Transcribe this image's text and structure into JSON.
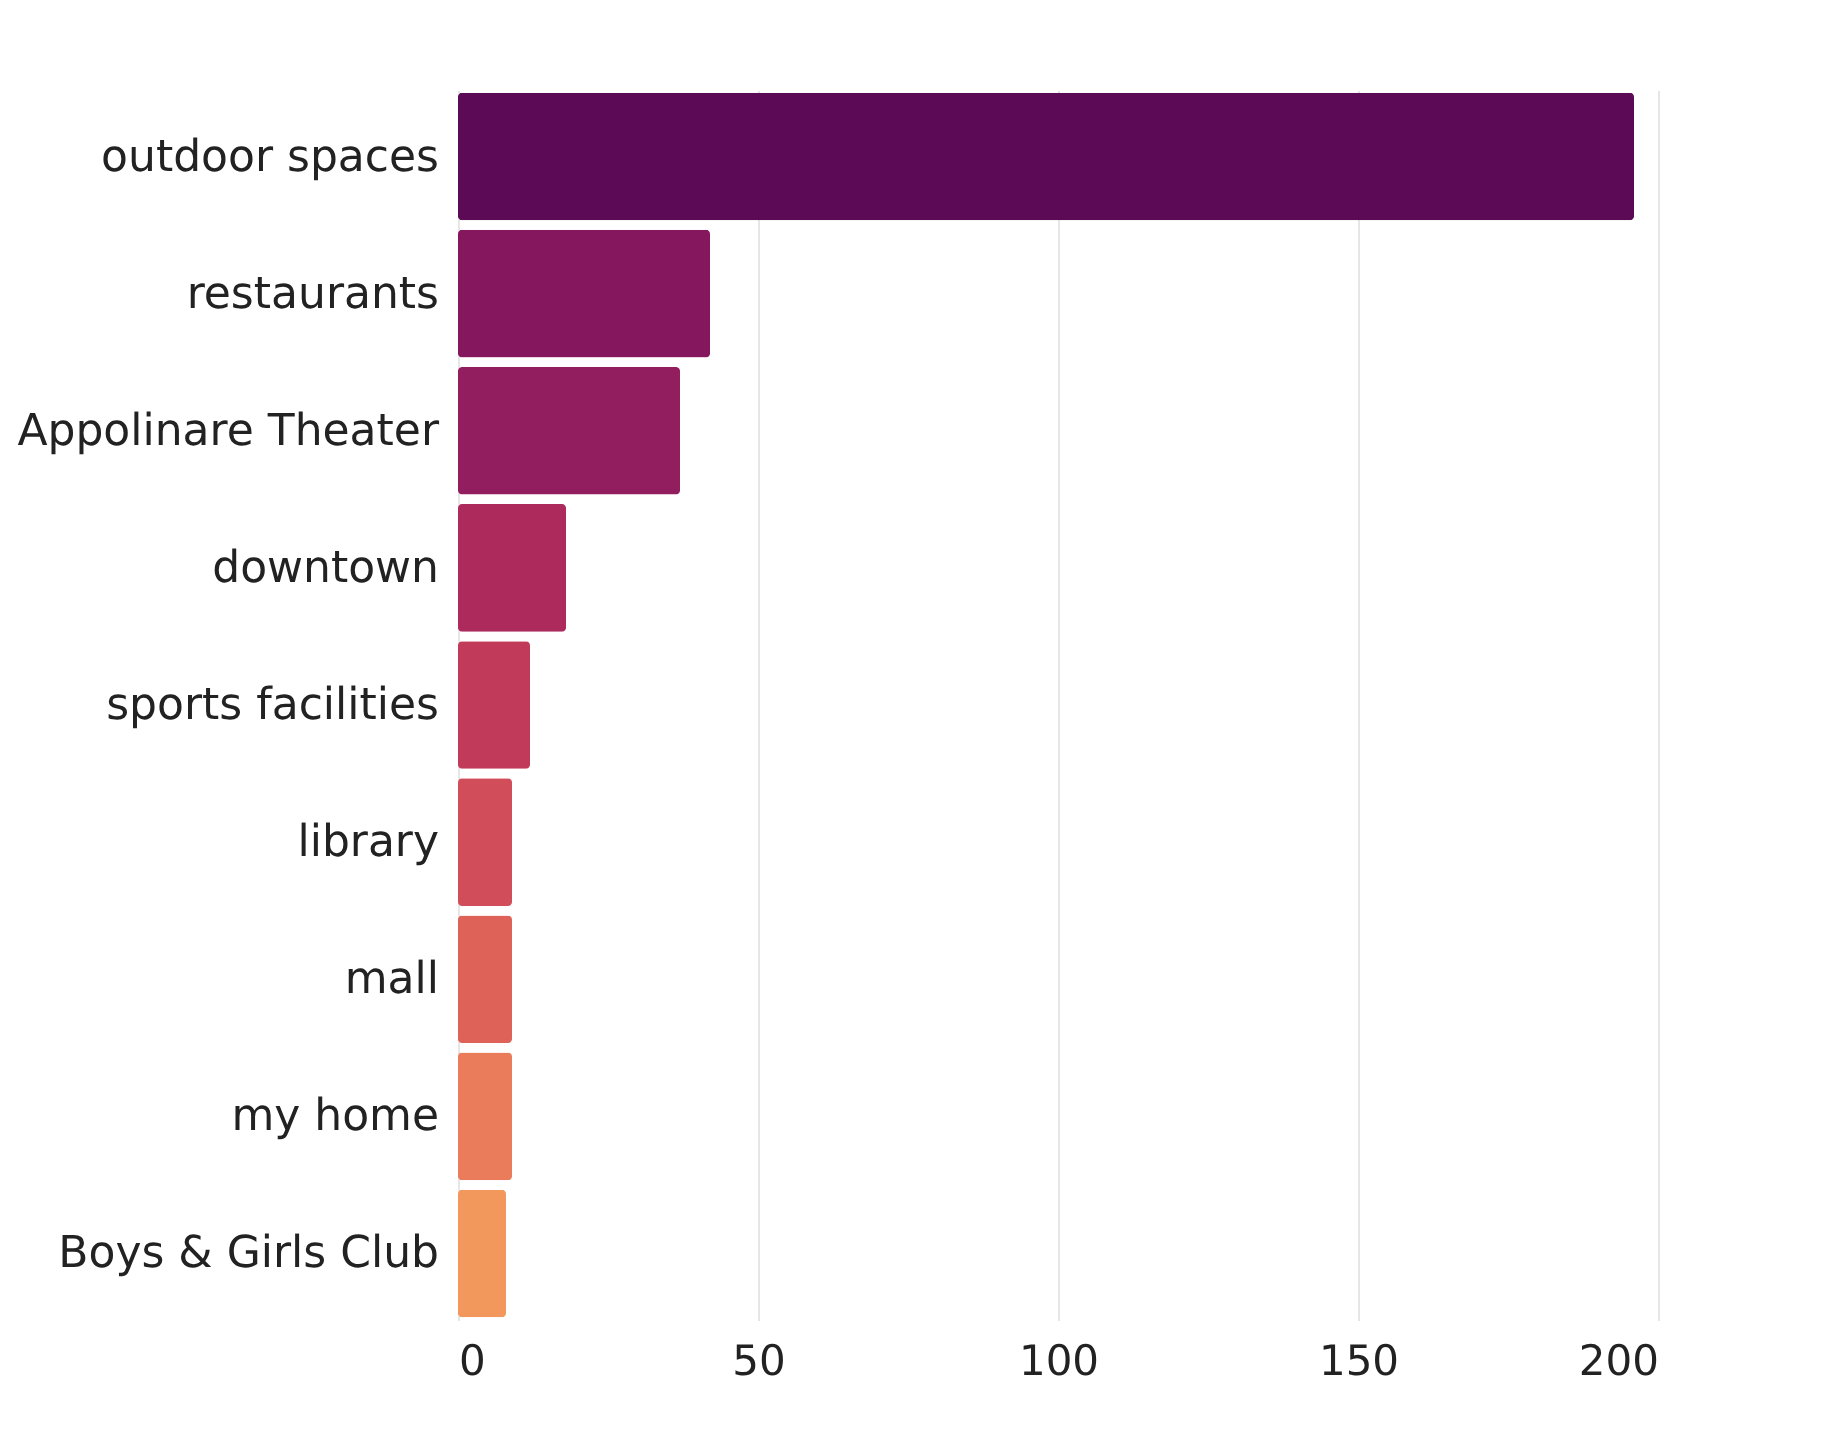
{
  "chart_data": {
    "type": "bar",
    "orientation": "horizontal",
    "categories": [
      "outdoor spaces",
      "restaurants",
      "Appolinare Theater",
      "downtown",
      "sports facilities",
      "library",
      "mall",
      "my home",
      "Boys & Girls Club"
    ],
    "values": [
      196,
      42,
      37,
      18,
      12,
      9,
      9,
      9,
      8
    ],
    "colors": [
      "#5c0a55",
      "#84175e",
      "#921e5f",
      "#ad2b5c",
      "#c23a5a",
      "#d24d5a",
      "#df6259",
      "#ea7b5b",
      "#f3985c"
    ],
    "xlim": [
      0,
      200
    ],
    "xticks": [
      0,
      50,
      100,
      150,
      200
    ],
    "grid": "x"
  }
}
